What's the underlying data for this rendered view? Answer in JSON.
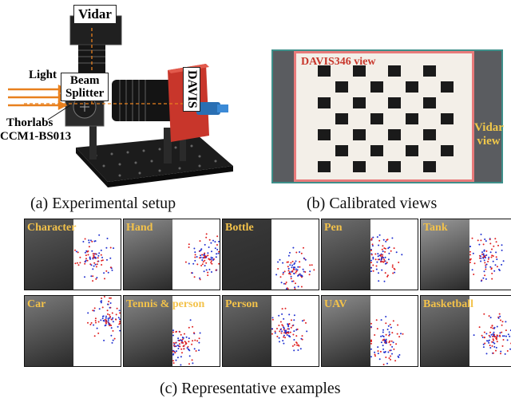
{
  "setup": {
    "labels": {
      "vidar": "Vidar",
      "light": "Light",
      "beam_splitter_line1": "Beam",
      "beam_splitter_line2": "Splitter",
      "davis": "DAVIS",
      "thorlabs_line1": "Thorlabs",
      "thorlabs_line2": "CCM1-BS013"
    },
    "caption": "(a) Experimental setup"
  },
  "calibration": {
    "davis_view_label": "DAVIS346 view",
    "vidar_view_line1": "Vidar",
    "vidar_view_line2": "view",
    "caption": "(b) Calibrated views"
  },
  "examples": {
    "caption": "(c) Representative examples",
    "items": [
      {
        "label": "Character"
      },
      {
        "label": "Hand"
      },
      {
        "label": "Bottle"
      },
      {
        "label": "Pen"
      },
      {
        "label": "Tank"
      },
      {
        "label": "Car"
      },
      {
        "label": "Tennis & person"
      },
      {
        "label": "Person"
      },
      {
        "label": "UAV"
      },
      {
        "label": "Basketball"
      }
    ]
  },
  "colors": {
    "label_yellow": "#f3c24a",
    "davis_red": "#c8362b",
    "frame_pink": "#e87a7a",
    "frame_teal": "#3e8f8a",
    "event_red": "#e02020",
    "event_blue": "#2030d0",
    "arrow_orange": "#e8801e"
  }
}
